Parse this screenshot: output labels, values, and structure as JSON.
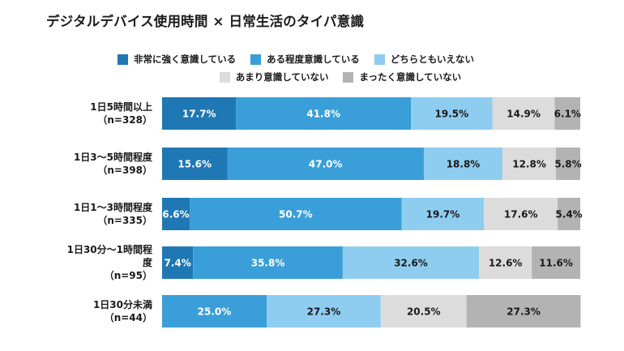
{
  "chart_data": {
    "type": "bar",
    "orientation": "horizontal",
    "stacked": true,
    "title": "デジタルデバイス使用時間 × 日常生活のタイパ意識",
    "xlim": [
      0,
      100
    ],
    "unit": "%",
    "legend_placement": "top",
    "categories": [
      {
        "label_lines": [
          "1日5時間以上",
          "（n=328）"
        ]
      },
      {
        "label_lines": [
          "1日3～5時間程度",
          "（n=398）"
        ]
      },
      {
        "label_lines": [
          "1日1～3時間程度",
          "（n=335）"
        ]
      },
      {
        "label_lines": [
          "1日30分～1時間程",
          "度",
          "（n=95）"
        ]
      },
      {
        "label_lines": [
          "1日30分未満",
          "（n=44）"
        ]
      }
    ],
    "series": [
      {
        "name": "非常に強く意識している",
        "color": "#1f78b4",
        "label_color": "#ffffff",
        "values": [
          17.7,
          15.6,
          6.6,
          7.4,
          0
        ]
      },
      {
        "name": "ある程度意識している",
        "color": "#3a9fd8",
        "label_color": "#ffffff",
        "values": [
          41.8,
          47.0,
          50.7,
          35.8,
          25.0
        ]
      },
      {
        "name": "どちらともいえない",
        "color": "#8fcdf0",
        "label_color": "#1a1a1a",
        "values": [
          19.5,
          18.8,
          19.7,
          32.6,
          27.3
        ]
      },
      {
        "name": "あまり意識していない",
        "color": "#dcdcdc",
        "label_color": "#1a1a1a",
        "values": [
          14.9,
          12.8,
          17.6,
          12.6,
          20.5
        ]
      },
      {
        "name": "まったく意識していない",
        "color": "#b3b3b3",
        "label_color": "#1a1a1a",
        "values": [
          6.1,
          5.8,
          5.4,
          11.6,
          27.3
        ]
      }
    ],
    "legend_rows": [
      [
        0,
        1,
        2
      ],
      [
        3,
        4
      ]
    ]
  }
}
